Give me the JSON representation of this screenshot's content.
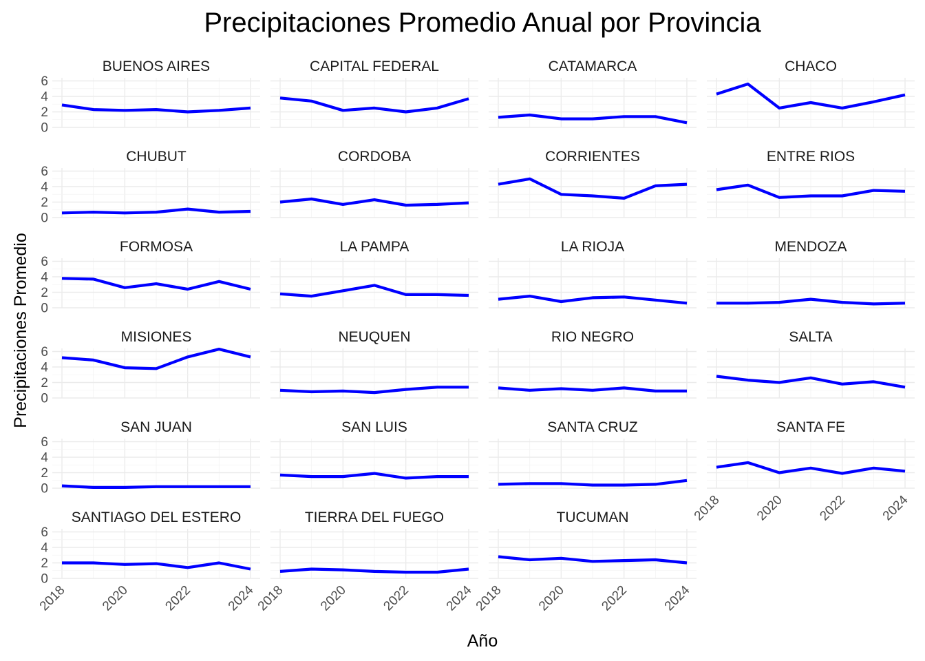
{
  "chart_data": {
    "type": "line",
    "title": "Precipitaciones Promedio Anual por Provincia",
    "xlabel": "Año",
    "ylabel": "Precipitaciones Promedio",
    "x": [
      2018,
      2019,
      2020,
      2021,
      2022,
      2023,
      2024
    ],
    "x_tick_labels": [
      "2018",
      "2020",
      "2022",
      "2024"
    ],
    "y_ticks": [
      0,
      2,
      4,
      6
    ],
    "ylim": [
      0,
      6.4
    ],
    "color": "#0000ff",
    "grid": true,
    "facets": [
      {
        "name": "BUENOS AIRES",
        "values": [
          2.9,
          2.3,
          2.2,
          2.3,
          2.0,
          2.2,
          2.5
        ]
      },
      {
        "name": "CAPITAL FEDERAL",
        "values": [
          3.8,
          3.4,
          2.2,
          2.5,
          2.0,
          2.5,
          3.7
        ]
      },
      {
        "name": "CATAMARCA",
        "values": [
          1.3,
          1.6,
          1.1,
          1.1,
          1.4,
          1.4,
          0.6
        ]
      },
      {
        "name": "CHACO",
        "values": [
          4.3,
          5.6,
          2.5,
          3.2,
          2.5,
          3.3,
          4.2
        ]
      },
      {
        "name": "CHUBUT",
        "values": [
          0.6,
          0.7,
          0.6,
          0.7,
          1.1,
          0.7,
          0.8
        ]
      },
      {
        "name": "CORDOBA",
        "values": [
          2.0,
          2.4,
          1.7,
          2.3,
          1.6,
          1.7,
          1.9
        ]
      },
      {
        "name": "CORRIENTES",
        "values": [
          4.3,
          5.0,
          3.0,
          2.8,
          2.5,
          4.1,
          4.3
        ]
      },
      {
        "name": "ENTRE RIOS",
        "values": [
          3.6,
          4.2,
          2.6,
          2.8,
          2.8,
          3.5,
          3.4
        ]
      },
      {
        "name": "FORMOSA",
        "values": [
          3.8,
          3.7,
          2.6,
          3.1,
          2.4,
          3.4,
          2.4
        ]
      },
      {
        "name": "LA PAMPA",
        "values": [
          1.8,
          1.5,
          2.2,
          2.9,
          1.7,
          1.7,
          1.6
        ]
      },
      {
        "name": "LA RIOJA",
        "values": [
          1.1,
          1.5,
          0.8,
          1.3,
          1.4,
          1.0,
          0.6
        ]
      },
      {
        "name": "MENDOZA",
        "values": [
          0.6,
          0.6,
          0.7,
          1.1,
          0.7,
          0.5,
          0.6
        ]
      },
      {
        "name": "MISIONES",
        "values": [
          5.2,
          4.9,
          3.9,
          3.8,
          5.3,
          6.3,
          5.3
        ]
      },
      {
        "name": "NEUQUEN",
        "values": [
          1.0,
          0.8,
          0.9,
          0.7,
          1.1,
          1.4,
          1.4
        ]
      },
      {
        "name": "RIO NEGRO",
        "values": [
          1.3,
          1.0,
          1.2,
          1.0,
          1.3,
          0.9,
          0.9
        ]
      },
      {
        "name": "SALTA",
        "values": [
          2.8,
          2.3,
          2.0,
          2.6,
          1.8,
          2.1,
          1.4
        ]
      },
      {
        "name": "SAN JUAN",
        "values": [
          0.3,
          0.1,
          0.1,
          0.2,
          0.2,
          0.2,
          0.2
        ]
      },
      {
        "name": "SAN LUIS",
        "values": [
          1.7,
          1.5,
          1.5,
          1.9,
          1.3,
          1.5,
          1.5
        ]
      },
      {
        "name": "SANTA CRUZ",
        "values": [
          0.5,
          0.6,
          0.6,
          0.4,
          0.4,
          0.5,
          1.0
        ]
      },
      {
        "name": "SANTA FE",
        "values": [
          2.7,
          3.3,
          2.0,
          2.6,
          1.9,
          2.6,
          2.2
        ]
      },
      {
        "name": "SANTIAGO DEL ESTERO",
        "values": [
          2.0,
          2.0,
          1.8,
          1.9,
          1.4,
          2.0,
          1.2
        ]
      },
      {
        "name": "TIERRA DEL FUEGO",
        "values": [
          0.9,
          1.2,
          1.1,
          0.9,
          0.8,
          0.8,
          1.2
        ]
      },
      {
        "name": "TUCUMAN",
        "values": [
          2.8,
          2.4,
          2.6,
          2.2,
          2.3,
          2.4,
          2.0
        ]
      }
    ]
  }
}
